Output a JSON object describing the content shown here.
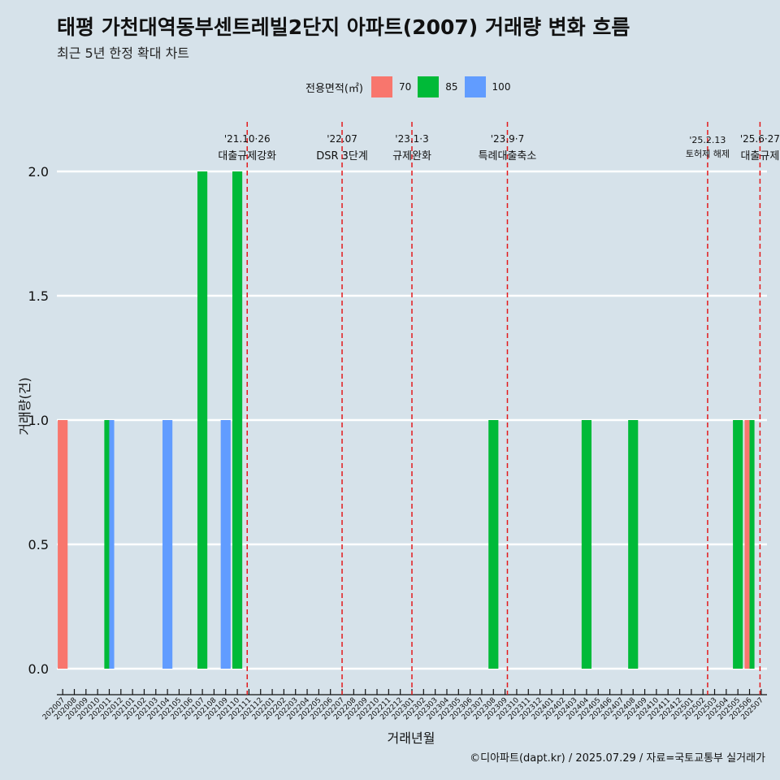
{
  "title": "태평 가천대역동부센트레빌2단지 아파트(2007) 거래량 변화 흐름",
  "subtitle": "최근 5년 한정 확대 차트",
  "caption": "©디아파트(dapt.kr) / 2025.07.29 / 자료=국토교통부 실거래가",
  "legend": {
    "title": "전용면적(㎡)",
    "items": [
      {
        "label": "70",
        "color": "#f8766d"
      },
      {
        "label": "85",
        "color": "#00ba38"
      },
      {
        "label": "100",
        "color": "#619cff"
      }
    ]
  },
  "chart_data": {
    "type": "bar",
    "xlabel": "거래년월",
    "ylabel": "거래량(건)",
    "ylim": [
      0,
      2.0
    ],
    "yticks": [
      "0.0",
      "0.5",
      "1.0",
      "1.5",
      "2.0"
    ],
    "grid": "horizontal",
    "legend_position": "top",
    "categories": [
      "202007",
      "202008",
      "202009",
      "202010",
      "202011",
      "202012",
      "202101",
      "202102",
      "202103",
      "202104",
      "202105",
      "202106",
      "202107",
      "202108",
      "202109",
      "202110",
      "202111",
      "202112",
      "202201",
      "202202",
      "202203",
      "202204",
      "202205",
      "202206",
      "202207",
      "202208",
      "202209",
      "202210",
      "202211",
      "202212",
      "202301",
      "202302",
      "202303",
      "202304",
      "202305",
      "202306",
      "202307",
      "202308",
      "202309",
      "202310",
      "202311",
      "202312",
      "202401",
      "202402",
      "202403",
      "202404",
      "202405",
      "202406",
      "202407",
      "202408",
      "202409",
      "202410",
      "202411",
      "202412",
      "202501",
      "202502",
      "202503",
      "202504",
      "202505",
      "202506",
      "202507"
    ],
    "series": [
      {
        "name": "70",
        "color": "#f8766d",
        "points": [
          {
            "x": "202007",
            "y": 1
          },
          {
            "x": "202506",
            "y": 1
          }
        ]
      },
      {
        "name": "85",
        "color": "#00ba38",
        "points": [
          {
            "x": "202011",
            "y": 1
          },
          {
            "x": "202107",
            "y": 2
          },
          {
            "x": "202110",
            "y": 2
          },
          {
            "x": "202308",
            "y": 1
          },
          {
            "x": "202404",
            "y": 1
          },
          {
            "x": "202408",
            "y": 1
          },
          {
            "x": "202505",
            "y": 1
          },
          {
            "x": "202506",
            "y": 1
          }
        ]
      },
      {
        "name": "100",
        "color": "#619cff",
        "points": [
          {
            "x": "202011",
            "y": 1
          },
          {
            "x": "202104",
            "y": 1
          },
          {
            "x": "202109",
            "y": 1
          }
        ]
      }
    ],
    "annotations": [
      {
        "x": 202110.85,
        "line1": "'21.10·26",
        "line2": "대출규제강화"
      },
      {
        "x": 202207,
        "line1": "'22.07",
        "line2": "DSR 3단계"
      },
      {
        "x": 202301,
        "line1": "'23.1·3",
        "line2": "규제완화"
      },
      {
        "x": 202309.2,
        "line1": "'23.9·7",
        "line2": "특례대출축소"
      },
      {
        "x": 202502.4,
        "line1": "'25.2.13",
        "line2": "토허제 해제"
      },
      {
        "x": 202506.9,
        "line1": "'25.6·27",
        "line2": "대출규제"
      }
    ]
  }
}
